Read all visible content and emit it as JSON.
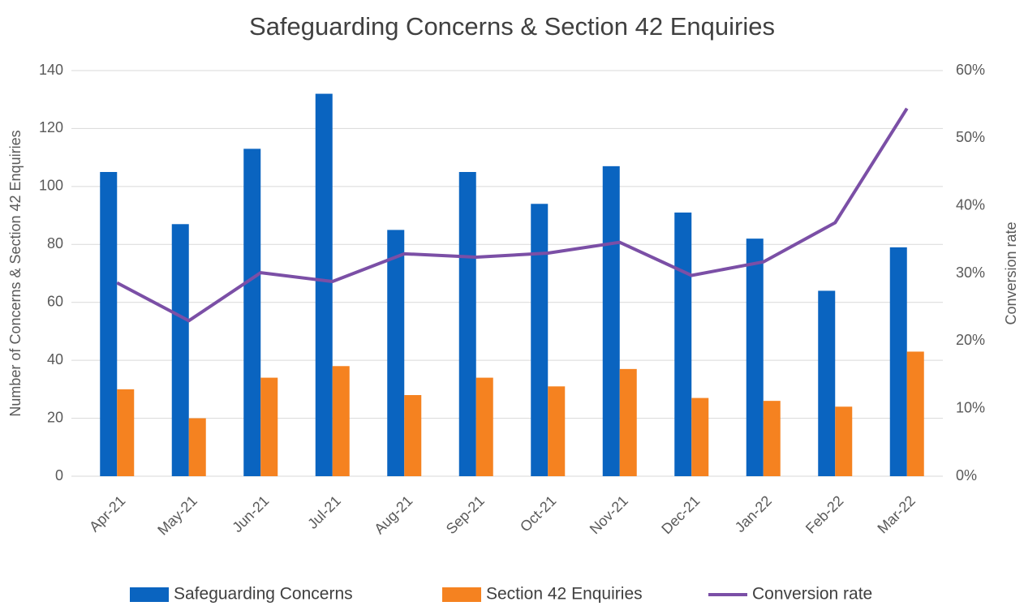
{
  "chart_data": {
    "type": "bar_line",
    "title": "Safeguarding Concerns & Section 42 Enquiries",
    "y_label": "Number of Concerns & Section 42 Enquiries",
    "y2_label": "Conversion rate",
    "categories": [
      "Apr-21",
      "May-21",
      "Jun-21",
      "Jul-21",
      "Aug-21",
      "Sep-21",
      "Oct-21",
      "Nov-21",
      "Dec-21",
      "Jan-22",
      "Feb-22",
      "Mar-22"
    ],
    "series": [
      {
        "name": "Safeguarding Concerns",
        "color": "#0a64c0",
        "type": "bar",
        "values": [
          105,
          87,
          113,
          132,
          85,
          105,
          94,
          107,
          91,
          82,
          64,
          79
        ]
      },
      {
        "name": "Section 42 Enquiries",
        "color": "#f58220",
        "type": "bar",
        "values": [
          30,
          20,
          34,
          38,
          28,
          34,
          31,
          37,
          27,
          26,
          24,
          43
        ]
      },
      {
        "name": "Conversion rate",
        "color": "#7b4fa6",
        "type": "line",
        "axis": "y2",
        "values": [
          28.6,
          23,
          30.1,
          28.8,
          32.9,
          32.4,
          33,
          34.6,
          29.7,
          31.7,
          37.5,
          54.4
        ]
      }
    ],
    "ylim": [
      0,
      140
    ],
    "yticks": [
      0,
      20,
      40,
      60,
      80,
      100,
      120,
      140
    ],
    "y2lim": [
      0,
      60
    ],
    "y2ticks": [
      {
        "value": 0,
        "label": "0%"
      },
      {
        "value": 10,
        "label": "10%"
      },
      {
        "value": 20,
        "label": "20%"
      },
      {
        "value": 30,
        "label": "30%"
      },
      {
        "value": 40,
        "label": "40%"
      },
      {
        "value": 50,
        "label": "50%"
      },
      {
        "value": 60,
        "label": "60%"
      }
    ],
    "grid": true,
    "legend": "bottom"
  }
}
